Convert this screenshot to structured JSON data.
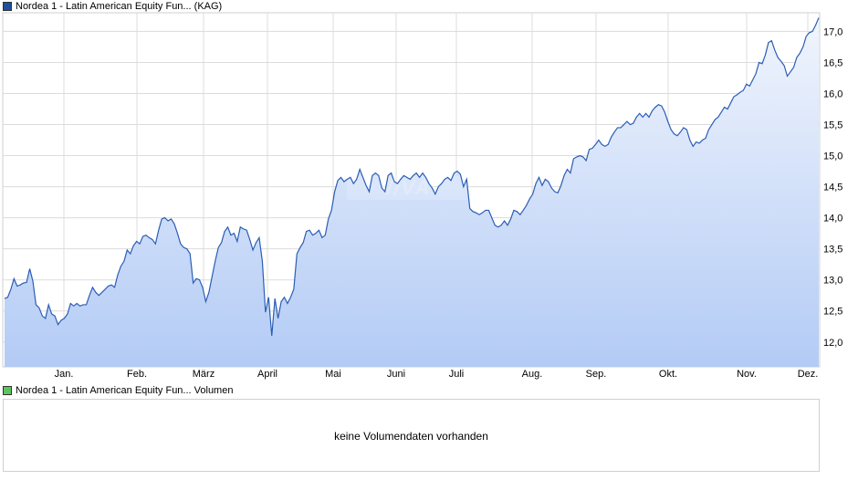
{
  "legend": {
    "price_label": "Nordea 1 - Latin American Equity Fun... (KAG)",
    "volume_label": "Nordea 1 - Latin American Equity Fun... Volumen"
  },
  "volume": {
    "message": "keine Volumendaten vorhanden"
  },
  "colors": {
    "line": "#2b5db5",
    "fill_top": "#f1f5fd",
    "fill_bottom": "#b3cbf5",
    "grid": "#dcdcdc",
    "watermark": "#ffffff"
  },
  "chart_data": {
    "type": "area",
    "title": "",
    "xlabel": "",
    "ylabel": "",
    "x_tick_labels": [
      "Jan.",
      "Feb.",
      "März",
      "April",
      "Mai",
      "Juni",
      "Juli",
      "Aug.",
      "Sep.",
      "Okt.",
      "Nov.",
      "Dez."
    ],
    "y_tick_labels": [
      "12,0",
      "12,5",
      "13,0",
      "13,5",
      "14,0",
      "14,5",
      "15,0",
      "15,5",
      "16,0",
      "16,5",
      "17,0"
    ],
    "ylim": [
      11.6,
      17.3
    ],
    "grid": true,
    "series": [
      {
        "values": [
          12.7,
          12.72,
          12.85,
          13.02,
          12.9,
          12.92,
          12.95,
          12.96,
          13.18,
          12.98,
          12.6,
          12.55,
          12.42,
          12.38,
          12.6,
          12.45,
          12.42,
          12.28,
          12.35,
          12.38,
          12.45,
          12.62,
          12.58,
          12.62,
          12.58,
          12.6,
          12.6,
          12.75,
          12.88,
          12.8,
          12.75,
          12.8,
          12.85,
          12.9,
          12.92,
          12.88,
          13.08,
          13.22,
          13.3,
          13.48,
          13.42,
          13.55,
          13.62,
          13.58,
          13.7,
          13.72,
          13.68,
          13.65,
          13.58,
          13.8,
          13.98,
          14.0,
          13.95,
          13.98,
          13.9,
          13.75,
          13.58,
          13.52,
          13.5,
          13.42,
          12.95,
          13.02,
          13.0,
          12.88,
          12.65,
          12.8,
          13.05,
          13.3,
          13.52,
          13.6,
          13.78,
          13.85,
          13.72,
          13.75,
          13.62,
          13.85,
          13.82,
          13.8,
          13.65,
          13.48,
          13.6,
          13.68,
          13.3,
          12.48,
          12.72,
          12.1,
          12.7,
          12.38,
          12.65,
          12.72,
          12.62,
          12.72,
          12.85,
          13.42,
          13.52,
          13.6,
          13.78,
          13.8,
          13.72,
          13.75,
          13.8,
          13.68,
          13.72,
          13.98,
          14.12,
          14.42,
          14.6,
          14.65,
          14.58,
          14.62,
          14.65,
          14.55,
          14.62,
          14.78,
          14.65,
          14.52,
          14.42,
          14.68,
          14.72,
          14.68,
          14.48,
          14.42,
          14.68,
          14.72,
          14.58,
          14.55,
          14.62,
          14.68,
          14.65,
          14.62,
          14.68,
          14.72,
          14.65,
          14.72,
          14.65,
          14.55,
          14.48,
          14.38,
          14.5,
          14.55,
          14.62,
          14.65,
          14.6,
          14.72,
          14.75,
          14.7,
          14.5,
          14.62,
          14.15,
          14.1,
          14.08,
          14.05,
          14.08,
          14.12,
          14.12,
          14.0,
          13.88,
          13.85,
          13.88,
          13.95,
          13.88,
          13.98,
          14.12,
          14.1,
          14.05,
          14.12,
          14.2,
          14.3,
          14.38,
          14.55,
          14.65,
          14.52,
          14.62,
          14.58,
          14.48,
          14.42,
          14.4,
          14.52,
          14.68,
          14.78,
          14.72,
          14.95,
          14.98,
          15.0,
          14.98,
          14.92,
          15.1,
          15.12,
          15.18,
          15.25,
          15.18,
          15.15,
          15.18,
          15.3,
          15.38,
          15.45,
          15.45,
          15.5,
          15.55,
          15.5,
          15.52,
          15.62,
          15.68,
          15.62,
          15.68,
          15.62,
          15.72,
          15.78,
          15.82,
          15.8,
          15.7,
          15.55,
          15.42,
          15.35,
          15.32,
          15.38,
          15.45,
          15.42,
          15.25,
          15.15,
          15.22,
          15.2,
          15.25,
          15.28,
          15.42,
          15.5,
          15.58,
          15.62,
          15.7,
          15.78,
          15.75,
          15.85,
          15.95,
          15.98,
          16.02,
          16.05,
          16.15,
          16.12,
          16.22,
          16.32,
          16.5,
          16.48,
          16.62,
          16.82,
          16.85,
          16.7,
          16.58,
          16.52,
          16.45,
          16.28,
          16.35,
          16.42,
          16.58,
          16.65,
          16.75,
          16.92,
          16.98,
          17.0,
          17.1,
          17.22
        ]
      }
    ]
  }
}
